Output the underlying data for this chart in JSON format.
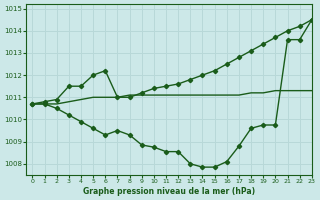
{
  "xlabel": "Graphe pression niveau de la mer (hPa)",
  "background_color": "#cce8e8",
  "grid_color": "#b8d8d8",
  "line_color": "#1a5c1a",
  "xlim": [
    -0.5,
    23
  ],
  "ylim": [
    1007.5,
    1015.2
  ],
  "yticks": [
    1008,
    1009,
    1010,
    1011,
    1012,
    1013,
    1014,
    1015
  ],
  "xticks": [
    0,
    1,
    2,
    3,
    4,
    5,
    6,
    7,
    8,
    9,
    10,
    11,
    12,
    13,
    14,
    15,
    16,
    17,
    18,
    19,
    20,
    21,
    22,
    23
  ],
  "s1_x": [
    0,
    1,
    2,
    3,
    4,
    5,
    6,
    7,
    8,
    9,
    10,
    11,
    12,
    13,
    14,
    15,
    16,
    17,
    18,
    19,
    20,
    21,
    22,
    23
  ],
  "s1_y": [
    1010.7,
    1010.7,
    1010.7,
    1010.8,
    1010.9,
    1011.0,
    1011.0,
    1011.0,
    1011.1,
    1011.1,
    1011.1,
    1011.1,
    1011.1,
    1011.1,
    1011.1,
    1011.1,
    1011.1,
    1011.1,
    1011.2,
    1011.2,
    1011.3,
    1011.3,
    1011.3,
    1011.3
  ],
  "s2_x": [
    0,
    1,
    2,
    3,
    4,
    5,
    6,
    7,
    8,
    9,
    10,
    11,
    12,
    13,
    14,
    15,
    16,
    17,
    18,
    19,
    20,
    21,
    22,
    23
  ],
  "s2_y": [
    1010.7,
    1010.8,
    1010.9,
    1011.5,
    1011.5,
    1012.0,
    1012.2,
    1011.0,
    1011.0,
    1011.2,
    1011.4,
    1011.5,
    1011.6,
    1011.8,
    1012.0,
    1012.2,
    1012.5,
    1012.8,
    1013.1,
    1013.4,
    1013.7,
    1014.0,
    1014.2,
    1014.5
  ],
  "s3_x": [
    0,
    1,
    2,
    3,
    4,
    5,
    6,
    7,
    8,
    9,
    10,
    11,
    12,
    13,
    14,
    15,
    16,
    17,
    18,
    19,
    20,
    21,
    22,
    23
  ],
  "s3_y": [
    1010.7,
    1010.7,
    1010.5,
    1010.2,
    1009.9,
    1009.6,
    1009.3,
    1009.5,
    1009.3,
    1008.85,
    1008.75,
    1008.55,
    1008.55,
    1008.0,
    1007.85,
    1007.85,
    1008.1,
    1008.8,
    1009.6,
    1009.75,
    1009.75,
    1013.6,
    1013.6,
    1014.5
  ]
}
